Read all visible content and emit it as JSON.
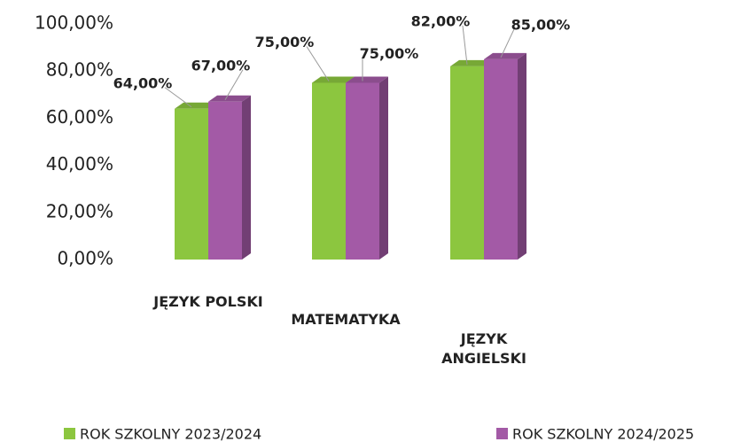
{
  "chart_data": {
    "type": "bar",
    "categories": [
      "JĘZYK POLSKI",
      "MATEMATYKA",
      "JĘZYK ANGIELSKI"
    ],
    "series": [
      {
        "name": "ROK SZKOLNY 2023/2024",
        "color": "#8cc63f",
        "values": [
          64,
          75,
          82
        ],
        "value_labels": [
          "64,00%",
          "75,00%",
          "82,00%"
        ]
      },
      {
        "name": "ROK SZKOLNY 2024/2025",
        "color": "#a35aa6",
        "values": [
          67,
          75,
          85
        ],
        "value_labels": [
          "67,00%",
          "75,00%",
          "85,00%"
        ]
      }
    ],
    "ylim": [
      0,
      100
    ],
    "yticks": [
      {
        "value": 0,
        "label": "0,00%"
      },
      {
        "value": 20,
        "label": "20,00%"
      },
      {
        "value": 40,
        "label": "40,00%"
      },
      {
        "value": 60,
        "label": "60,00%"
      },
      {
        "value": 80,
        "label": "80,00%"
      },
      {
        "value": 100,
        "label": "100,00%"
      }
    ],
    "legend": "bottom"
  }
}
